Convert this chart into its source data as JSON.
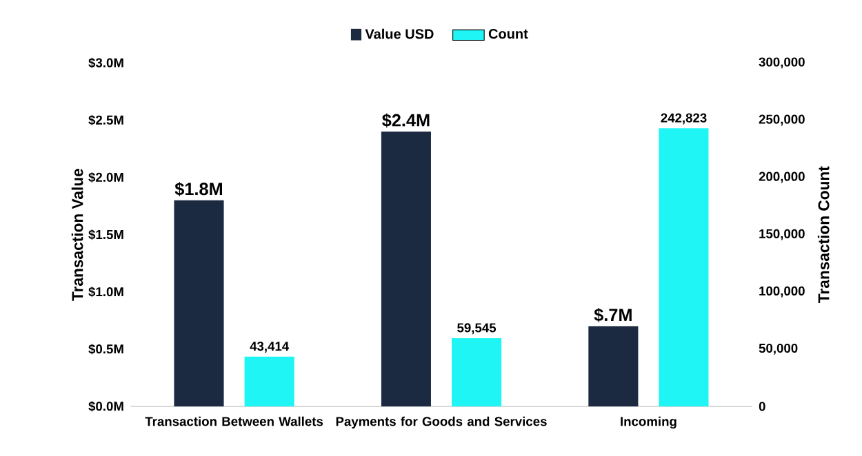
{
  "chart_data": {
    "type": "bar",
    "xlabel": null,
    "ylabel": "Transaction Value",
    "y2label": "Transaction Count",
    "categories": [
      "Transaction Between Wallets",
      "Payments for Goods and Services",
      "Incoming"
    ],
    "series": [
      {
        "name": "Value USD",
        "color": "#1b2a41",
        "values": [
          1.8,
          2.4,
          0.7
        ],
        "value_labels": [
          "$1.8M",
          "$2.4M",
          "$.7M"
        ]
      },
      {
        "name": "Count",
        "color": "#1ff5f5",
        "axis": "y2",
        "values": [
          43414,
          59545,
          242823
        ],
        "value_labels": [
          "43,414",
          "59,545",
          "242,823"
        ]
      }
    ],
    "ylim": [
      0,
      3
    ],
    "yticks": [
      {
        "value": 0,
        "label": "$0.0M"
      },
      {
        "value": 0.5,
        "label": "$0.5M"
      },
      {
        "value": 1,
        "label": "$1.0M"
      },
      {
        "value": 1.5,
        "label": "$1.5M"
      },
      {
        "value": 2,
        "label": "$2.0M"
      },
      {
        "value": 2.5,
        "label": "$2.5M"
      },
      {
        "value": 3,
        "label": "$3.0M"
      }
    ],
    "y2lim": [
      0,
      300000
    ],
    "y2ticks": [
      0,
      {
        "value": 50000,
        "label": "50,000"
      },
      {
        "value": 100000,
        "label": "100,000"
      },
      {
        "value": 150000,
        "label": "150,000"
      },
      {
        "value": 200000,
        "label": "200,000"
      },
      {
        "value": 250000,
        "label": "250,000"
      },
      {
        "value": 300000,
        "label": "300,000"
      }
    ],
    "legend": "top"
  }
}
